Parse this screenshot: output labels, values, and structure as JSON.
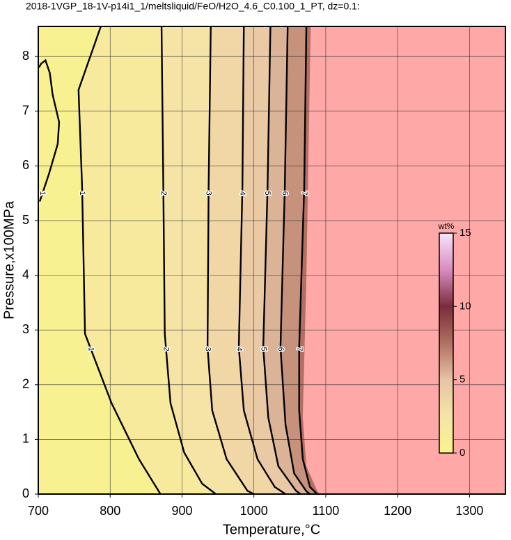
{
  "chart_data": {
    "type": "contour",
    "title": "2018-1VGP_18-1V-p14i1_1/meltsliquid/FeO/H2O_4.6_C0.100_1_PT, dz=0.1:",
    "xlabel": "Temperature,°C",
    "ylabel": "Pressure,x100MPa",
    "xlim": [
      700,
      1350
    ],
    "ylim": [
      0,
      8.55
    ],
    "xticks": [
      700,
      800,
      900,
      1000,
      1100,
      1200,
      1300
    ],
    "yticks": [
      0,
      1,
      2,
      3,
      4,
      5,
      6,
      7,
      8
    ],
    "grid": true,
    "contours": [
      {
        "level": 1,
        "x": [
          787,
          756,
          761,
          765,
          802,
          840,
          870
        ],
        "y": [
          8.55,
          7.39,
          5.6,
          2.93,
          1.66,
          0.64,
          0
        ]
      },
      {
        "level": 1,
        "x": [
          702,
          715,
          727,
          729,
          720,
          716,
          710,
          704,
          701
        ],
        "y": [
          5.35,
          5.86,
          6.4,
          6.8,
          7.3,
          7.7,
          7.93,
          7.87,
          7.8
        ]
      },
      {
        "level": 2,
        "x": [
          871.5,
          874,
          876,
          884,
          903,
          928,
          947
        ],
        "y": [
          8.55,
          5.6,
          2.93,
          1.66,
          0.76,
          0.19,
          0
        ]
      },
      {
        "level": 3,
        "x": [
          940,
          937,
          935.5,
          942,
          962,
          991,
          1000
        ],
        "y": [
          8.55,
          5.6,
          2.68,
          1.53,
          0.64,
          0.06,
          0
        ]
      },
      {
        "level": 4,
        "x": [
          986,
          984,
          979,
          986,
          1005,
          1029,
          1044
        ],
        "y": [
          8.55,
          5.6,
          2.68,
          1.53,
          0.64,
          0.13,
          0
        ]
      },
      {
        "level": 5,
        "x": [
          1023,
          1019,
          1013,
          1020,
          1034,
          1058.5,
          1065
        ],
        "y": [
          8.55,
          5.6,
          2.68,
          1.4,
          0.51,
          0.06,
          0
        ]
      },
      {
        "level": 6,
        "x": [
          1047,
          1043,
          1037,
          1044,
          1056,
          1073,
          1078
        ],
        "y": [
          8.55,
          5.6,
          2.68,
          1.27,
          0.38,
          0.05,
          0
        ]
      },
      {
        "level": 7,
        "x": [
          1073,
          1070,
          1063,
          1063,
          1068,
          1078,
          1088
        ],
        "y": [
          8.55,
          5.6,
          2.68,
          1.53,
          0.64,
          0.13,
          0
        ]
      }
    ],
    "no_data_region": {
      "color": "#ffa8a8",
      "x": [
        1079,
        1073,
        1068,
        1073,
        1088,
        1092
      ],
      "y": [
        8.55,
        3.95,
        1.4,
        0.51,
        0.06,
        0
      ]
    },
    "colorbar": {
      "label": "wt%",
      "lim": [
        0,
        15
      ],
      "ticks": [
        0,
        5,
        10,
        15
      ],
      "colors": [
        "#f8f48c",
        "#f6e4a6",
        "#e6c4a4",
        "#b07062",
        "#7a2c3c",
        "#d88cc0",
        "#f6e6f8"
      ]
    }
  }
}
